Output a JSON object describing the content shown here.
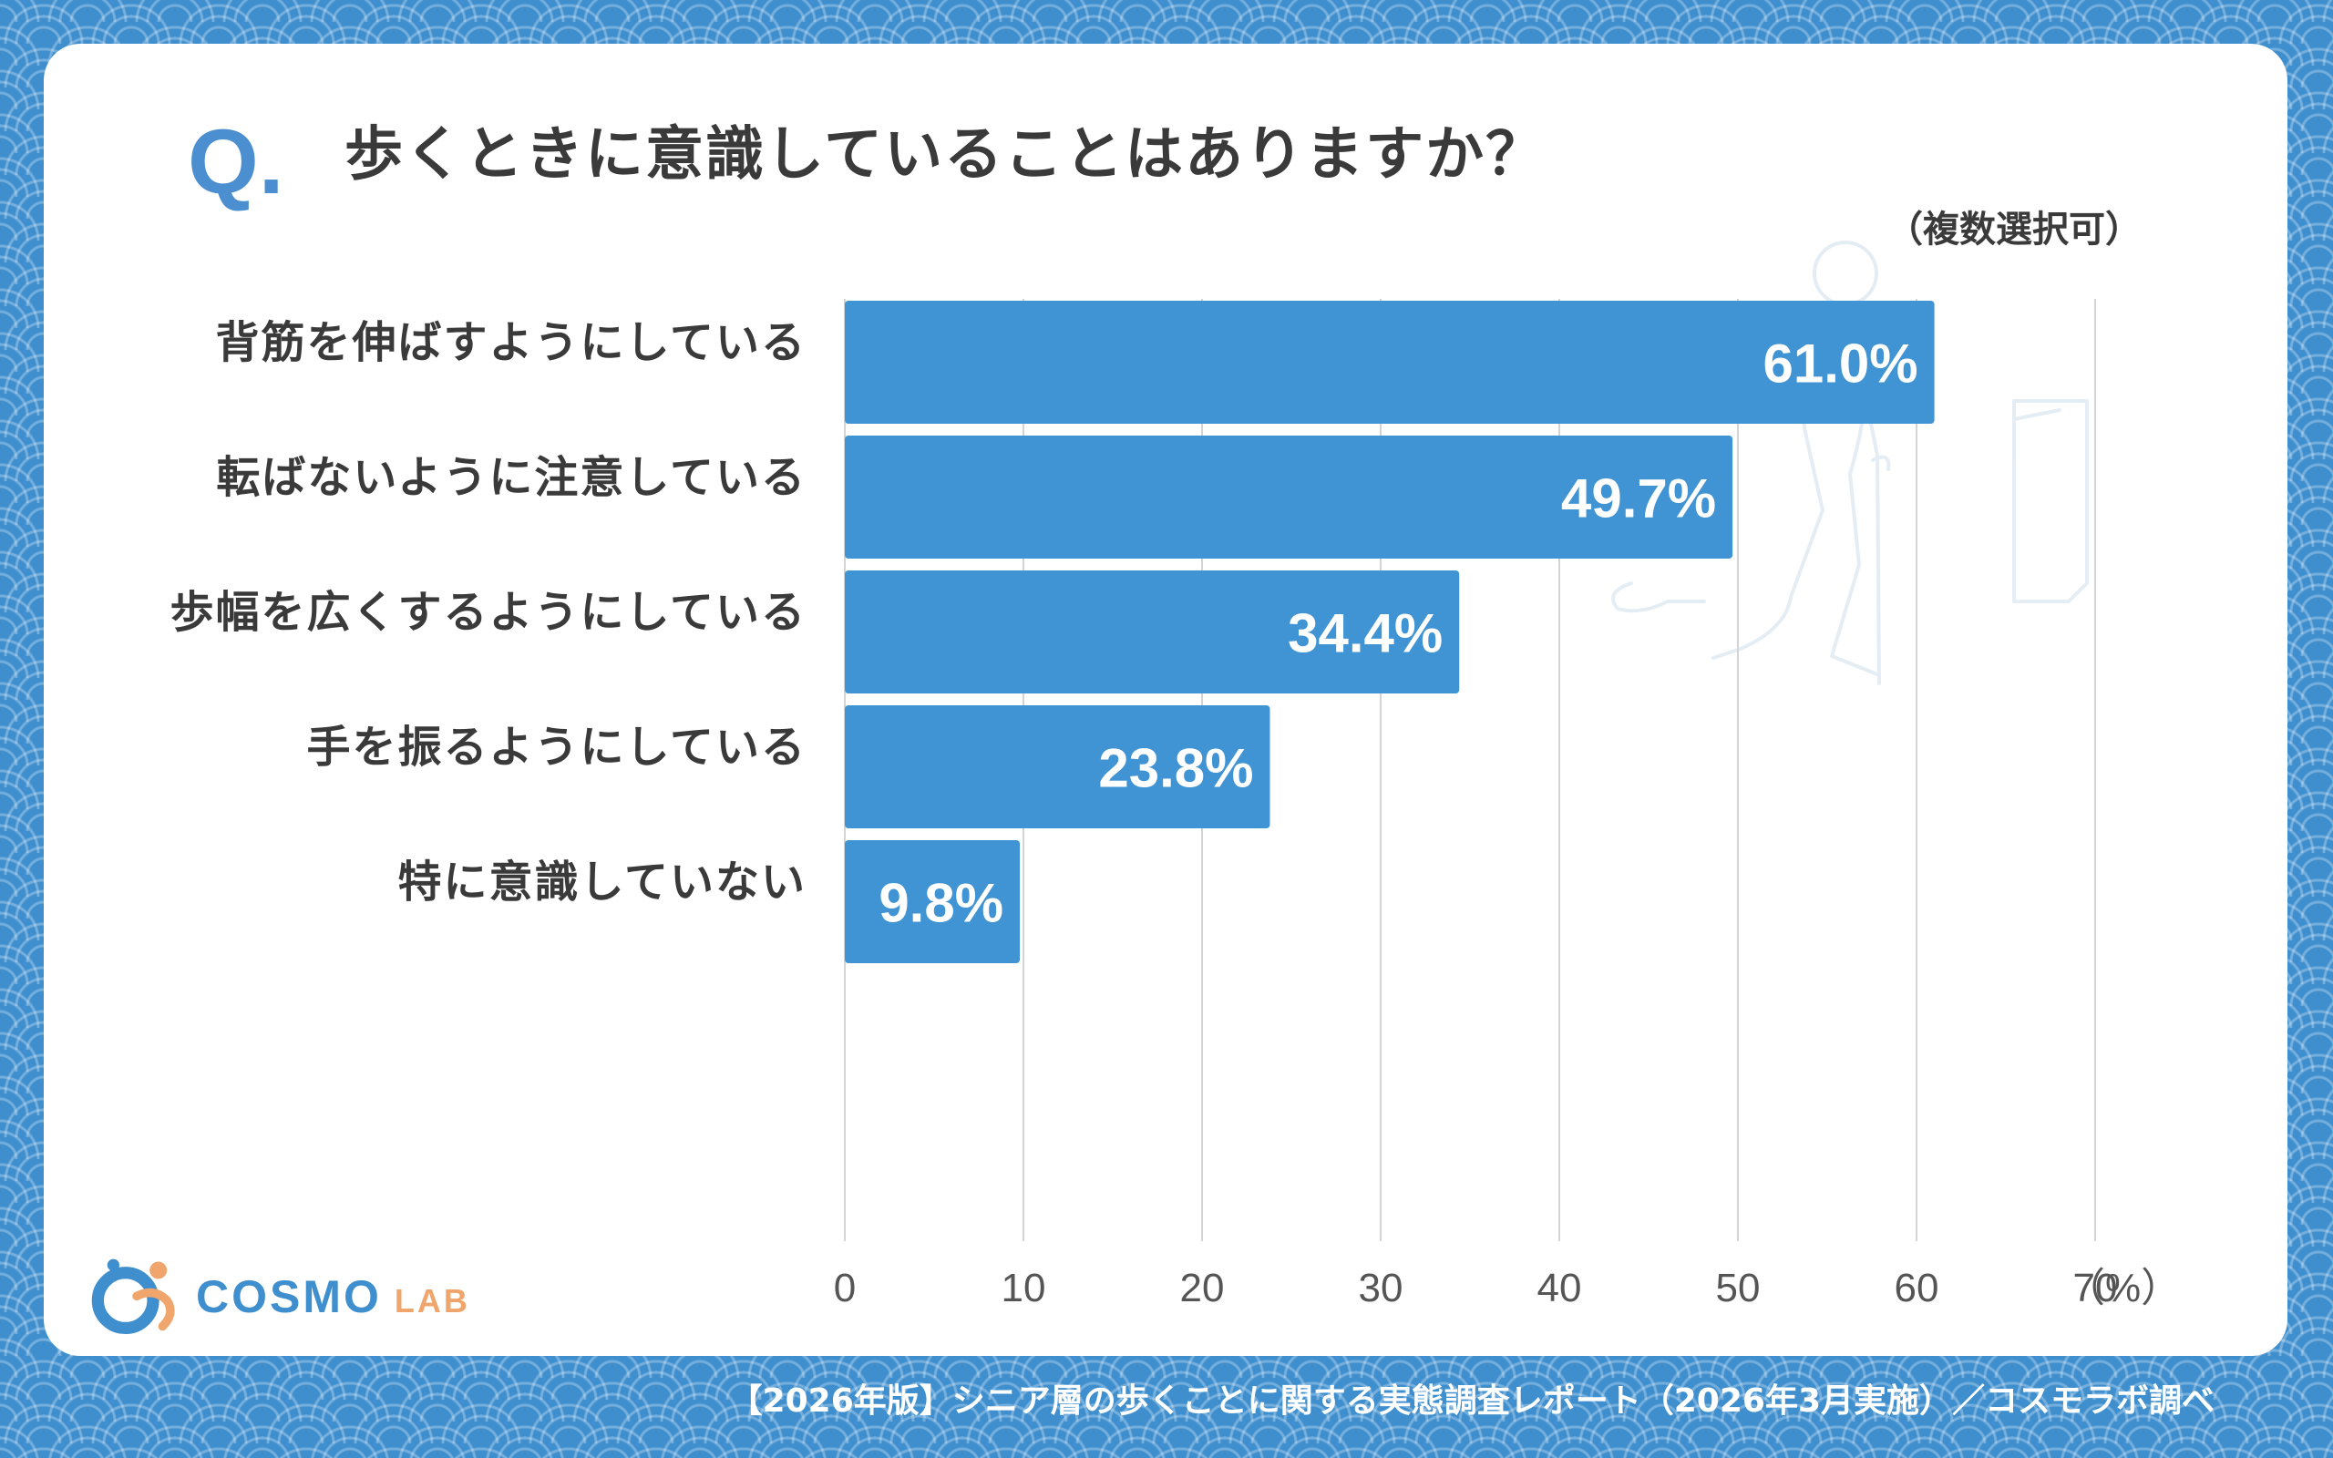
{
  "question": {
    "mark": "Q.",
    "text": "歩くときに意識していることはありますか？",
    "note": "（複数選択可）"
  },
  "chart_data": {
    "type": "bar",
    "orientation": "horizontal",
    "categories": [
      "背筋を伸ばすようにしている",
      "転ばないように注意している",
      "歩幅を広くするようにしている",
      "手を振るようにしている",
      "特に意識していない"
    ],
    "values": [
      61.0,
      49.7,
      34.4,
      23.8,
      9.8
    ],
    "value_labels": [
      "61.0%",
      "49.7%",
      "34.4%",
      "23.8%",
      "9.8%"
    ],
    "xlim": [
      0,
      70
    ],
    "xticks": [
      0,
      10,
      20,
      30,
      40,
      50,
      60,
      70
    ],
    "x_unit_label": "（%）",
    "grid": "vertical",
    "bar_color": "#4094d3"
  },
  "footer": {
    "source": "【2026年版】シニア層の歩くことに関する実態調査レポート（2026年3月実施）／コスモラボ調べ"
  },
  "logo": {
    "word1": "COSMO",
    "word2": "LAB"
  }
}
